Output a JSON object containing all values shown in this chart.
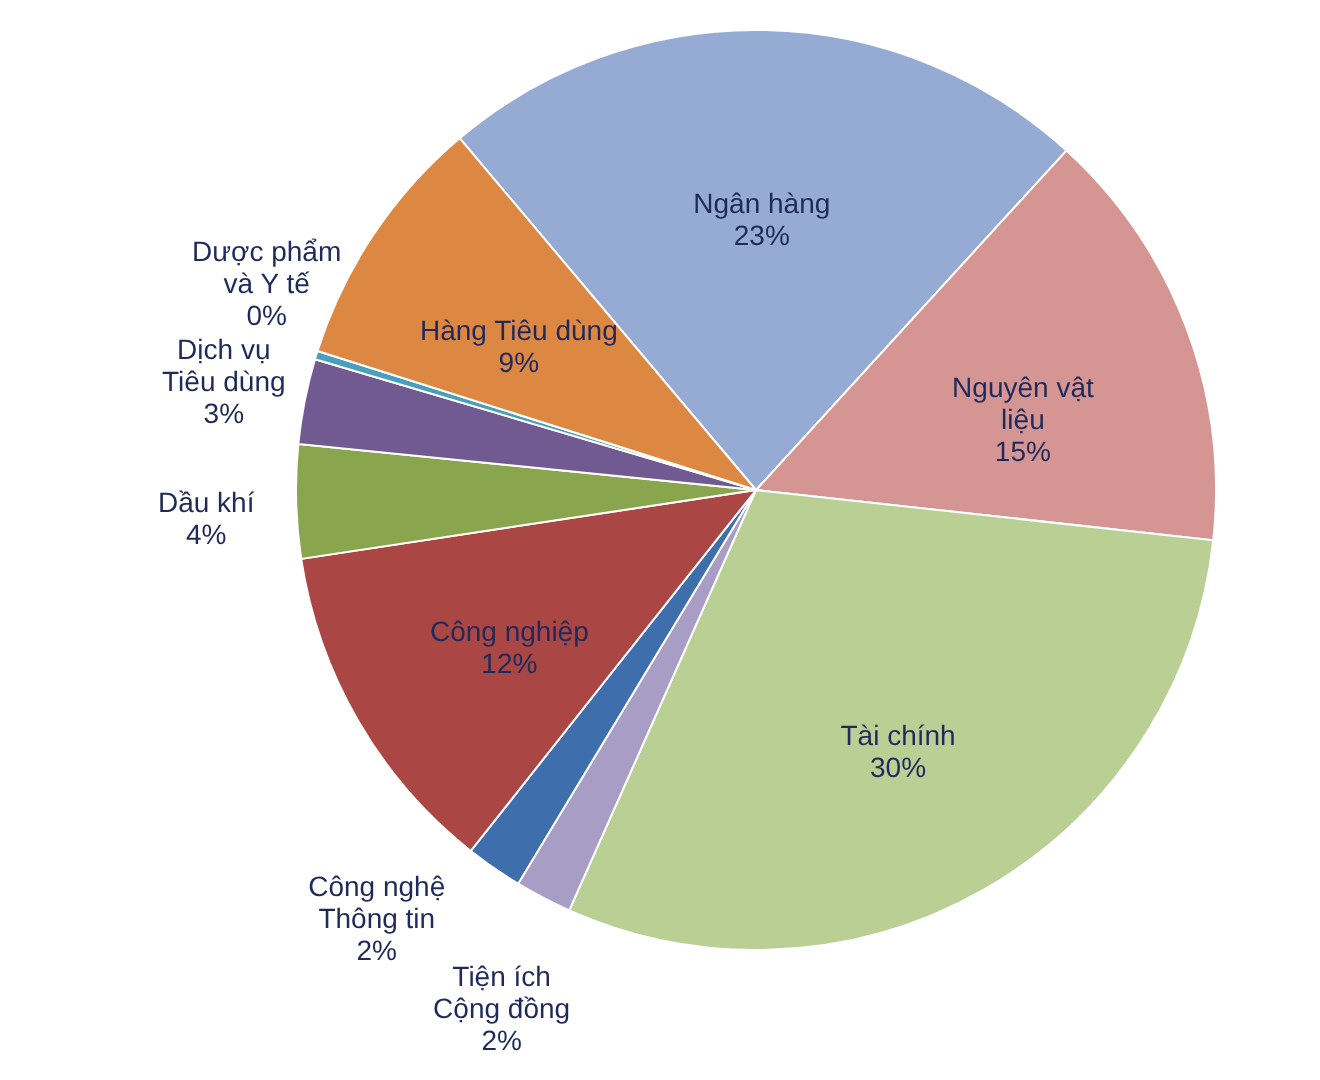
{
  "chart_data": {
    "type": "pie",
    "categories": [
      "Ngân hàng",
      "Nguyên vật liệu",
      "Tài chính",
      "Tiện ích Cộng đồng",
      "Công nghệ Thông tin",
      "Công nghiệp",
      "Dầu khí",
      "Dịch vụ Tiêu dùng",
      "Dược phẩm và Y tế",
      "Hàng Tiêu dùng"
    ],
    "values": [
      23,
      15,
      30,
      2,
      2,
      12,
      4,
      3,
      0.3,
      9
    ],
    "value_labels": [
      "23%",
      "15%",
      "30%",
      "2%",
      "2%",
      "12%",
      "4%",
      "3%",
      "0%",
      "9%"
    ],
    "colors": [
      "#95abd3",
      "#d49593",
      "#b9cf94",
      "#a79dc5",
      "#3e6eab",
      "#aa4644",
      "#89a64e",
      "#715a91",
      "#4aa0bc",
      "#dd8842"
    ]
  }
}
